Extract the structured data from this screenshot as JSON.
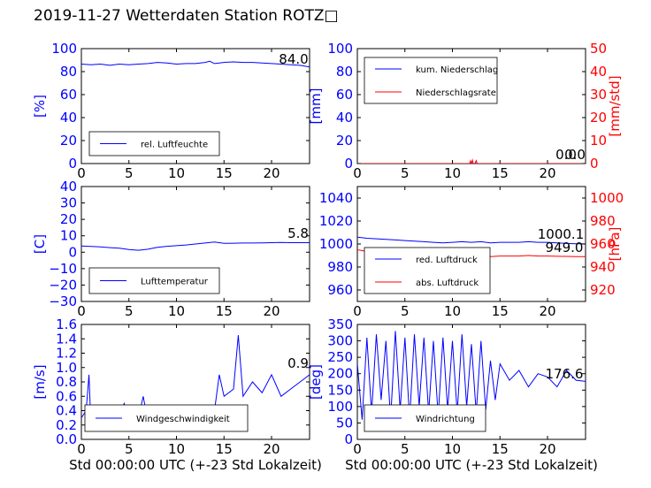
{
  "title": "2019-11-27 Wetterdaten Station ROTZ□",
  "colors": {
    "primary": "#0000ff",
    "secondary": "#ff0000",
    "axis": "#000000"
  },
  "x_common": {
    "xlabel": "Std 00:00:00 UTC (+-23 Std Lokalzeit)",
    "xlim": [
      0,
      24
    ],
    "xticks": [
      "0",
      "5",
      "10",
      "15",
      "20"
    ]
  },
  "chart_data": [
    {
      "id": "humidity",
      "type": "line",
      "ylabel": "[%]",
      "ylim": [
        0,
        100
      ],
      "yticks": [
        "0",
        "20",
        "40",
        "60",
        "80",
        "100"
      ],
      "value_label": "84.0",
      "legend": {
        "placement": "lower-left"
      },
      "series": [
        {
          "name": "rel. Luftfeuchte",
          "color": "#0000ff",
          "x": [
            0,
            1,
            2,
            3,
            4,
            5,
            6,
            7,
            8,
            9,
            10,
            11,
            12,
            13,
            13.5,
            14,
            15,
            16,
            17,
            18,
            19,
            20,
            21,
            22,
            23,
            24
          ],
          "y": [
            86.5,
            86,
            86.5,
            85.5,
            86.5,
            86,
            86.5,
            87,
            88,
            87.5,
            86.5,
            87,
            87,
            88,
            89,
            87,
            88,
            88.5,
            88,
            88,
            87.5,
            87,
            86.5,
            86,
            85.5,
            84
          ]
        }
      ]
    },
    {
      "id": "precipitation",
      "type": "line",
      "ylabel": "[mm]",
      "ylim": [
        0,
        100
      ],
      "yticks": [
        "0",
        "20",
        "40",
        "60",
        "80",
        "100"
      ],
      "y2label": "[mm/std]",
      "y2lim": [
        0,
        50
      ],
      "y2ticks": [
        "0",
        "10",
        "20",
        "30",
        "40",
        "50"
      ],
      "value_labels": [
        "0.0",
        "0.0"
      ],
      "legend": {
        "placement": "upper-left"
      },
      "series": [
        {
          "name": "kum. Niederschlag",
          "color": "#0000ff",
          "axis": "left",
          "x": [
            0,
            24
          ],
          "y": [
            0,
            0
          ]
        },
        {
          "name": "Niederschlagsrate",
          "color": "#ff0000",
          "axis": "right",
          "x": [
            0,
            11.8,
            11.9,
            12.0,
            12.1,
            12.2,
            12.35,
            12.5,
            12.6,
            12.7,
            24
          ],
          "y": [
            0,
            0,
            1.2,
            0,
            1.5,
            0,
            0,
            1.3,
            0,
            0,
            0
          ]
        }
      ]
    },
    {
      "id": "temperature",
      "type": "line",
      "ylabel": "[C]",
      "ylim": [
        -30,
        40
      ],
      "yticks": [
        "−30",
        "−20",
        "−10",
        "0",
        "10",
        "20",
        "30",
        "40"
      ],
      "value_label": "5.8",
      "legend": {
        "placement": "lower-left"
      },
      "series": [
        {
          "name": "Lufttemperatur",
          "color": "#0000ff",
          "x": [
            0,
            1,
            2,
            3,
            4,
            5,
            6,
            7,
            8,
            9,
            10,
            11,
            12,
            13,
            14,
            15,
            16,
            17,
            18,
            19,
            20,
            21,
            22,
            23,
            24
          ],
          "y": [
            3.8,
            3.5,
            3.2,
            2.8,
            2.4,
            1.6,
            1.2,
            1.8,
            3.0,
            3.6,
            4.0,
            4.4,
            5.0,
            5.6,
            6.2,
            5.4,
            5.5,
            5.6,
            5.6,
            5.7,
            5.8,
            5.9,
            5.8,
            5.8,
            5.8
          ]
        }
      ]
    },
    {
      "id": "pressure",
      "type": "line",
      "ylabel": "",
      "ylim": [
        950,
        1050
      ],
      "yticks": [
        "960",
        "980",
        "1000",
        "1020",
        "1040"
      ],
      "y2label": "[hPa]",
      "y2lim": [
        910,
        1010
      ],
      "y2ticks": [
        "920",
        "940",
        "960",
        "980",
        "1000"
      ],
      "value_labels": [
        "1000.1",
        "949.0"
      ],
      "legend": {
        "placement": "lower-left"
      },
      "series": [
        {
          "name": "red. Luftdruck",
          "color": "#0000ff",
          "axis": "left",
          "x": [
            0,
            1,
            2,
            3,
            4,
            5,
            6,
            7,
            8,
            9,
            10,
            11,
            12,
            13,
            14,
            15,
            16,
            17,
            18,
            19,
            20,
            21,
            22,
            23,
            24
          ],
          "y": [
            1006,
            1005,
            1004.5,
            1004,
            1003.5,
            1003,
            1002.5,
            1002,
            1001.5,
            1001,
            1001.5,
            1002,
            1001.5,
            1002,
            1001,
            1001.5,
            1001.5,
            1001.5,
            1002,
            1001.5,
            1001.5,
            1001,
            1000.5,
            1000.2,
            1000.1
          ]
        },
        {
          "name": "abs. Luftdruck",
          "color": "#ff0000",
          "axis": "right",
          "x": [
            0,
            1,
            2,
            3,
            4,
            5,
            6,
            7,
            8,
            9,
            10,
            11,
            12,
            13,
            14,
            15,
            16,
            17,
            18,
            19,
            20,
            21,
            22,
            23,
            24
          ],
          "y": [
            955,
            953.5,
            952.5,
            952,
            951.5,
            951,
            950.5,
            950,
            949.5,
            949,
            949.5,
            950,
            949.5,
            950,
            949,
            949.5,
            949.5,
            949.5,
            950,
            949.5,
            949.5,
            949.3,
            949.2,
            949.1,
            949.0
          ]
        }
      ]
    },
    {
      "id": "windspeed",
      "type": "line",
      "ylabel": "[m/s]",
      "ylim": [
        0,
        1.6
      ],
      "yticks": [
        "0.0",
        "0.2",
        "0.4",
        "0.6",
        "0.8",
        "1.0",
        "1.2",
        "1.4",
        "1.6"
      ],
      "value_label": "0.9",
      "legend": {
        "placement": "lower-center"
      },
      "series": [
        {
          "name": "Windgeschwindigkeit",
          "color": "#0000ff",
          "x": [
            0,
            0.5,
            0.8,
            1,
            1.5,
            2,
            3,
            4,
            4.5,
            5,
            6,
            6.5,
            7,
            8,
            9,
            10,
            11,
            12,
            13,
            14,
            14.5,
            15,
            16,
            16.5,
            17,
            18,
            19,
            20,
            21,
            22,
            23,
            24
          ],
          "y": [
            0.3,
            0.4,
            0.9,
            0.2,
            0.3,
            0.2,
            0.25,
            0.3,
            0.5,
            0.25,
            0.3,
            0.6,
            0.25,
            0.3,
            0.35,
            0.3,
            0.35,
            0.4,
            0.35,
            0.4,
            0.9,
            0.6,
            0.7,
            1.45,
            0.6,
            0.8,
            0.65,
            0.9,
            0.6,
            0.7,
            0.8,
            0.9
          ]
        }
      ]
    },
    {
      "id": "winddirection",
      "type": "line",
      "ylabel": "[deg]",
      "ylim": [
        0,
        350
      ],
      "yticks": [
        "0",
        "50",
        "100",
        "150",
        "200",
        "250",
        "300",
        "350"
      ],
      "value_label": "176.6",
      "legend": {
        "placement": "lower-left"
      },
      "series": [
        {
          "name": "Windrichtung",
          "color": "#0000ff",
          "x": [
            0,
            0.5,
            1,
            1.5,
            2,
            2.5,
            3,
            3.5,
            4,
            4.5,
            5,
            5.5,
            6,
            6.5,
            7,
            7.5,
            8,
            8.5,
            9,
            9.5,
            10,
            10.5,
            11,
            11.5,
            12,
            12.5,
            13,
            13.5,
            14,
            14.5,
            15,
            16,
            17,
            18,
            19,
            20,
            21,
            22,
            23,
            24
          ],
          "y": [
            230,
            60,
            310,
            80,
            320,
            120,
            300,
            60,
            330,
            90,
            310,
            60,
            320,
            100,
            310,
            80,
            300,
            70,
            310,
            90,
            300,
            80,
            320,
            100,
            290,
            80,
            300,
            90,
            240,
            120,
            230,
            180,
            210,
            160,
            200,
            190,
            160,
            210,
            180,
            176.6
          ]
        }
      ]
    }
  ]
}
